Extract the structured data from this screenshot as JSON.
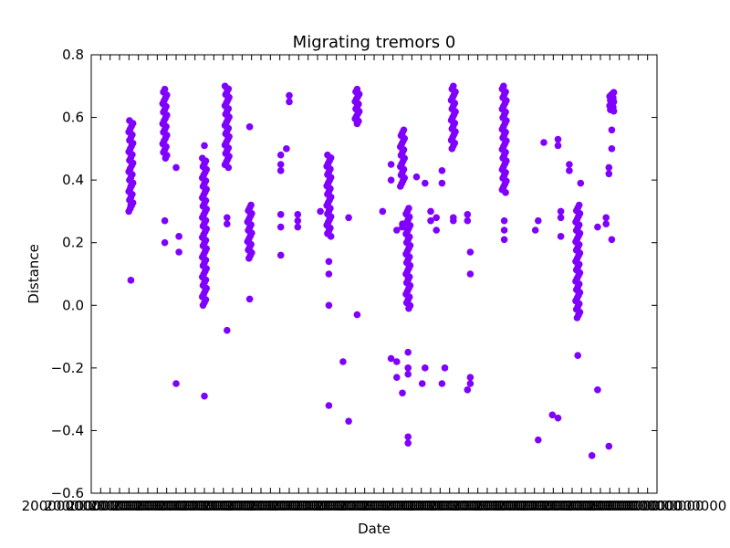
{
  "chart_data": {
    "type": "scatter",
    "title": "Migrating tremors 0",
    "xlabel": "Date",
    "ylabel": "Distance",
    "ylim": [
      -0.6,
      0.8
    ],
    "yticks": [
      "−0.6",
      "−0.4",
      "−0.2",
      "0.0",
      "0.2",
      "0.4",
      "0.6",
      "0.8"
    ],
    "xtick_label_text": "2000000000000000",
    "x_tick_labels_legible": false,
    "grid": false,
    "legend": "none",
    "marker_color": "#8000ff",
    "clusters": [
      {
        "x": 0.07,
        "y_min": 0.3,
        "y_max": 0.59,
        "extra": [
          0.08,
          0.38,
          0.32
        ]
      },
      {
        "x": 0.13,
        "y_min": 0.47,
        "y_max": 0.69,
        "extra": [
          0.27,
          0.2
        ]
      },
      {
        "x": 0.2,
        "y_min": 0.0,
        "y_max": 0.47,
        "extra": [
          -0.29,
          0.51
        ]
      },
      {
        "x": 0.24,
        "y_min": 0.44,
        "y_max": 0.7,
        "extra": [
          0.28,
          0.26,
          -0.08
        ]
      },
      {
        "x": 0.28,
        "y_min": 0.15,
        "y_max": 0.32,
        "extra": [
          0.02,
          0.57
        ]
      },
      {
        "x": 0.42,
        "y_min": 0.22,
        "y_max": 0.48,
        "extra": [
          0.14,
          0.1,
          0.0,
          -0.32
        ]
      },
      {
        "x": 0.47,
        "y_min": 0.58,
        "y_max": 0.69,
        "extra": [
          -0.03
        ]
      },
      {
        "x": 0.55,
        "y_min": 0.38,
        "y_max": 0.56,
        "extra": [
          0.25,
          0.26
        ]
      },
      {
        "x": 0.56,
        "y_min": -0.01,
        "y_max": 0.31,
        "extra": [
          -0.15,
          -0.2,
          -0.22,
          -0.42,
          -0.44
        ]
      },
      {
        "x": 0.64,
        "y_min": 0.5,
        "y_max": 0.7,
        "extra": [
          0.28,
          0.27
        ]
      },
      {
        "x": 0.73,
        "y_min": 0.36,
        "y_max": 0.7,
        "extra": [
          0.27,
          0.24,
          0.21
        ]
      },
      {
        "x": 0.86,
        "y_min": -0.04,
        "y_max": 0.32,
        "extra": [
          -0.16
        ]
      },
      {
        "x": 0.92,
        "y_min": 0.62,
        "y_max": 0.68,
        "extra": [
          0.56,
          0.5,
          0.21
        ]
      }
    ],
    "isolated_points": [
      {
        "x": 0.15,
        "y": 0.44
      },
      {
        "x": 0.15,
        "y": -0.25
      },
      {
        "x": 0.155,
        "y": 0.22
      },
      {
        "x": 0.155,
        "y": 0.17
      },
      {
        "x": 0.335,
        "y": 0.48
      },
      {
        "x": 0.335,
        "y": 0.45
      },
      {
        "x": 0.335,
        "y": 0.43
      },
      {
        "x": 0.335,
        "y": 0.29
      },
      {
        "x": 0.335,
        "y": 0.25
      },
      {
        "x": 0.335,
        "y": 0.16
      },
      {
        "x": 0.345,
        "y": 0.5
      },
      {
        "x": 0.35,
        "y": 0.67
      },
      {
        "x": 0.35,
        "y": 0.65
      },
      {
        "x": 0.365,
        "y": 0.29
      },
      {
        "x": 0.365,
        "y": 0.27
      },
      {
        "x": 0.365,
        "y": 0.25
      },
      {
        "x": 0.405,
        "y": 0.3
      },
      {
        "x": 0.445,
        "y": -0.18
      },
      {
        "x": 0.455,
        "y": -0.37
      },
      {
        "x": 0.455,
        "y": 0.28
      },
      {
        "x": 0.515,
        "y": 0.3
      },
      {
        "x": 0.53,
        "y": 0.45
      },
      {
        "x": 0.53,
        "y": 0.4
      },
      {
        "x": 0.53,
        "y": -0.17
      },
      {
        "x": 0.54,
        "y": 0.24
      },
      {
        "x": 0.54,
        "y": -0.18
      },
      {
        "x": 0.54,
        "y": -0.23
      },
      {
        "x": 0.55,
        "y": -0.28
      },
      {
        "x": 0.575,
        "y": 0.41
      },
      {
        "x": 0.585,
        "y": -0.25
      },
      {
        "x": 0.59,
        "y": -0.2
      },
      {
        "x": 0.59,
        "y": 0.39
      },
      {
        "x": 0.6,
        "y": 0.3
      },
      {
        "x": 0.6,
        "y": 0.27
      },
      {
        "x": 0.61,
        "y": 0.28
      },
      {
        "x": 0.61,
        "y": 0.24
      },
      {
        "x": 0.62,
        "y": 0.43
      },
      {
        "x": 0.62,
        "y": 0.39
      },
      {
        "x": 0.62,
        "y": -0.25
      },
      {
        "x": 0.625,
        "y": -0.2
      },
      {
        "x": 0.665,
        "y": 0.29
      },
      {
        "x": 0.665,
        "y": 0.27
      },
      {
        "x": 0.665,
        "y": -0.27
      },
      {
        "x": 0.67,
        "y": 0.17
      },
      {
        "x": 0.67,
        "y": 0.1
      },
      {
        "x": 0.67,
        "y": -0.23
      },
      {
        "x": 0.67,
        "y": -0.25
      },
      {
        "x": 0.785,
        "y": 0.24
      },
      {
        "x": 0.79,
        "y": 0.27
      },
      {
        "x": 0.79,
        "y": -0.43
      },
      {
        "x": 0.8,
        "y": 0.52
      },
      {
        "x": 0.815,
        "y": -0.35
      },
      {
        "x": 0.825,
        "y": 0.53
      },
      {
        "x": 0.825,
        "y": 0.51
      },
      {
        "x": 0.825,
        "y": -0.36
      },
      {
        "x": 0.83,
        "y": 0.3
      },
      {
        "x": 0.83,
        "y": 0.28
      },
      {
        "x": 0.83,
        "y": 0.22
      },
      {
        "x": 0.845,
        "y": 0.45
      },
      {
        "x": 0.845,
        "y": 0.43
      },
      {
        "x": 0.865,
        "y": 0.39
      },
      {
        "x": 0.885,
        "y": -0.48
      },
      {
        "x": 0.895,
        "y": 0.25
      },
      {
        "x": 0.895,
        "y": -0.27
      },
      {
        "x": 0.91,
        "y": 0.28
      },
      {
        "x": 0.91,
        "y": 0.26
      },
      {
        "x": 0.915,
        "y": 0.44
      },
      {
        "x": 0.915,
        "y": 0.42
      },
      {
        "x": 0.915,
        "y": -0.45
      }
    ]
  }
}
